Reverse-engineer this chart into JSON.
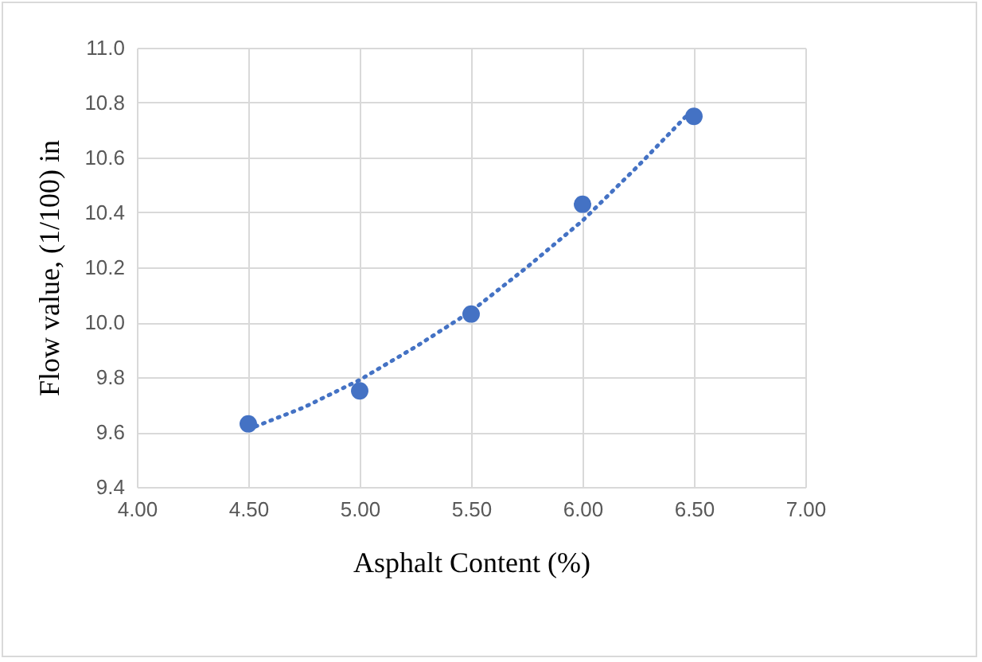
{
  "chart_data": {
    "type": "scatter",
    "xlabel": "Asphalt Content (%)",
    "ylabel": "Flow value, (1/100) in",
    "marker": "circle",
    "grid": true,
    "xlim": [
      4,
      7
    ],
    "xticks": [
      {
        "value": 4,
        "label": "4.00"
      },
      {
        "value": 4.5,
        "label": "4.50"
      },
      {
        "value": 5,
        "label": "5.00"
      },
      {
        "value": 5.5,
        "label": "5.50"
      },
      {
        "value": 6,
        "label": "6.00"
      },
      {
        "value": 6.5,
        "label": "6.50"
      },
      {
        "value": 7,
        "label": "7.00"
      }
    ],
    "ylim": [
      9.4,
      11
    ],
    "yticks": [
      9.4,
      9.6,
      9.8,
      {
        "value": 10,
        "label": "10.0"
      },
      10.2,
      10.4,
      10.6,
      10.8,
      {
        "value": 11,
        "label": "11.0"
      }
    ],
    "series": [
      {
        "color": "#4472c4",
        "x": [
          4.5,
          5,
          5.5,
          6,
          6.5
        ],
        "values": [
          9.63,
          9.75,
          10.03,
          10.43,
          10.75
        ]
      },
      {
        "type": "line",
        "marker": "none",
        "line_style": "dotted",
        "color": "#4472c4",
        "x": [
          4.5,
          4.75,
          5,
          5.25,
          5.5,
          5.75,
          6,
          6.25,
          6.5
        ],
        "values": [
          9.61,
          9.69,
          9.79,
          9.91,
          10.04,
          10.2,
          10.37,
          10.57,
          10.78
        ]
      }
    ]
  }
}
